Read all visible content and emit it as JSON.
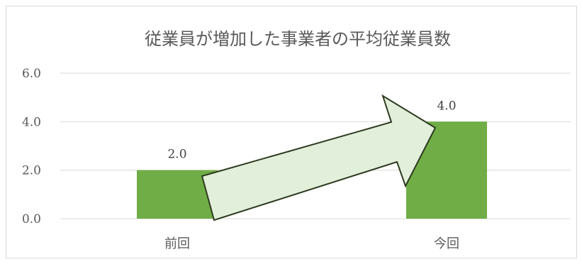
{
  "chart_data": {
    "type": "bar",
    "title": "従業員が増加した事業者の平均従業員数",
    "categories": [
      "前回",
      "今回"
    ],
    "values": [
      2.0,
      4.0
    ],
    "value_labels": [
      "2.0",
      "4.0"
    ],
    "ylim": [
      0,
      6
    ],
    "yticks": [
      0,
      2,
      4,
      6
    ],
    "ytick_labels": [
      "0.0",
      "2.0",
      "4.0",
      "6.0"
    ],
    "xlabel": "",
    "ylabel": "",
    "grid": true,
    "legend": "none",
    "annotation": "arrow-increase"
  },
  "colors": {
    "bar": "#70ad47",
    "grid": "#d9d9d9",
    "arrow_fill": "#e2efda",
    "arrow_stroke": "#2e3b1f"
  }
}
